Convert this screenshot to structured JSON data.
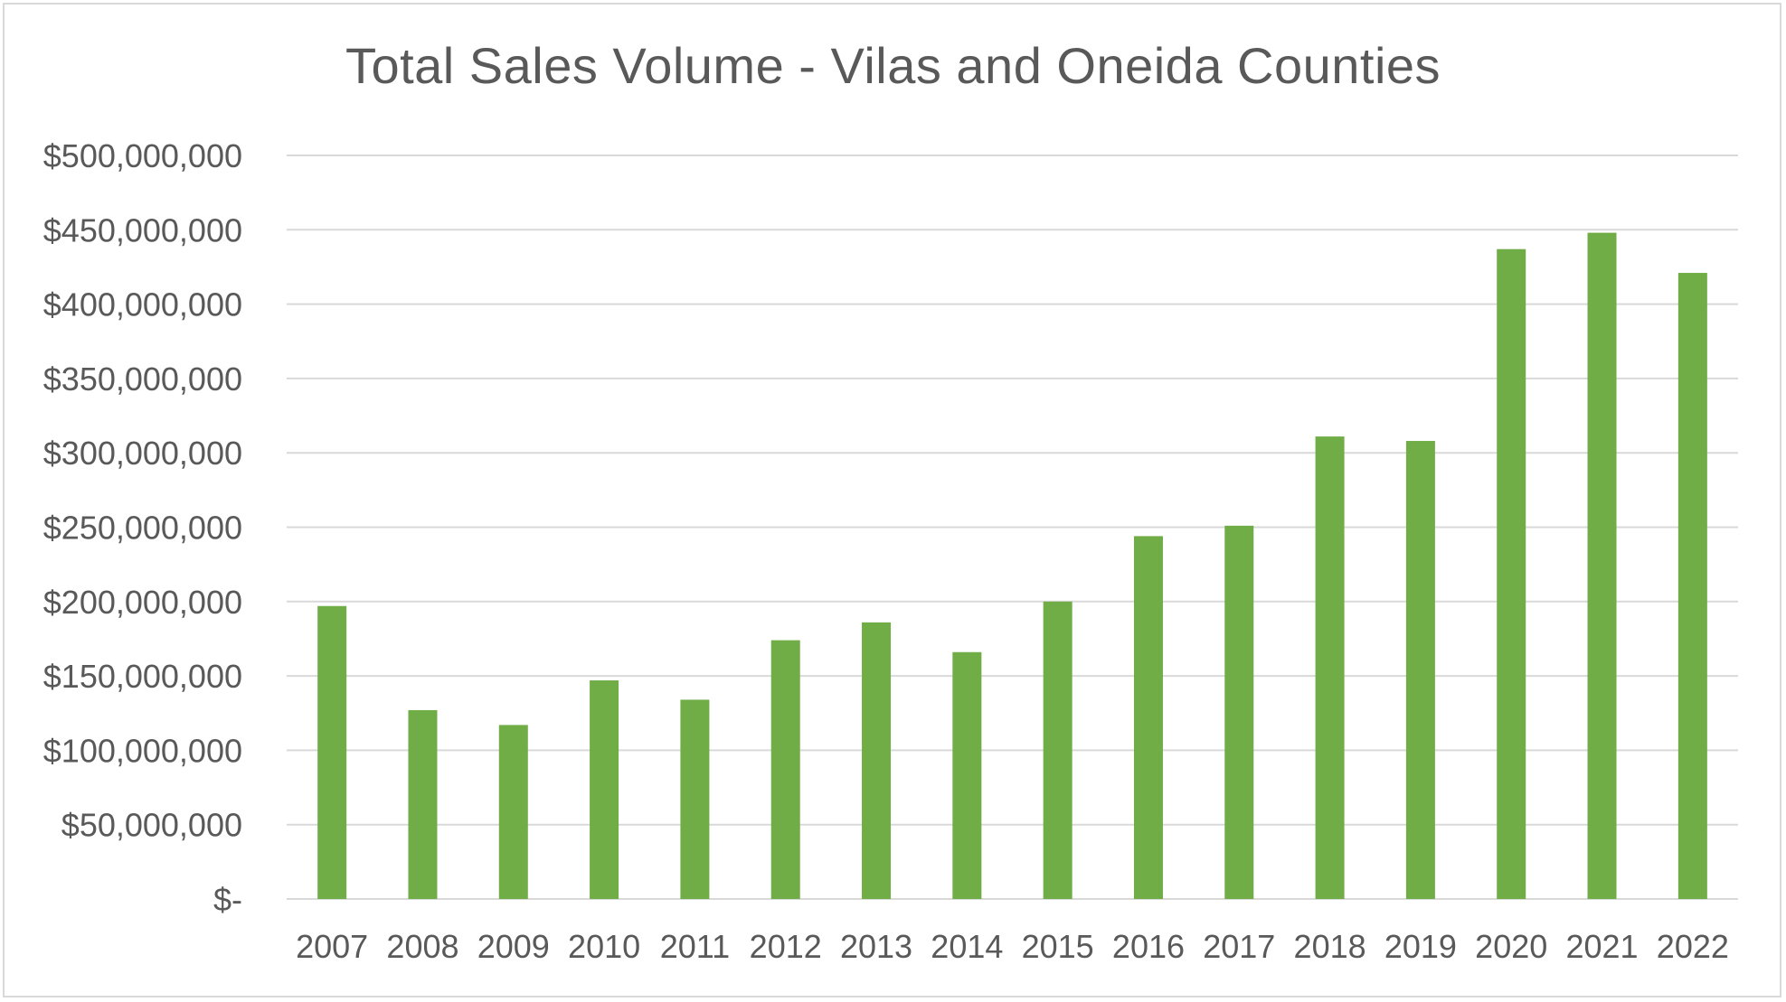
{
  "chart_data": {
    "type": "bar",
    "title": "Total Sales Volume - Vilas and Oneida Counties",
    "xlabel": "",
    "ylabel": "",
    "categories": [
      "2007",
      "2008",
      "2009",
      "2010",
      "2011",
      "2012",
      "2013",
      "2014",
      "2015",
      "2016",
      "2017",
      "2018",
      "2019",
      "2020",
      "2021",
      "2022"
    ],
    "values": [
      197000000,
      127000000,
      117000000,
      147000000,
      134000000,
      174000000,
      186000000,
      166000000,
      200000000,
      244000000,
      251000000,
      311000000,
      308000000,
      437000000,
      448000000,
      421000000
    ],
    "ylim": [
      0,
      500000000
    ],
    "yticks": [
      0,
      50000000,
      100000000,
      150000000,
      200000000,
      250000000,
      300000000,
      350000000,
      400000000,
      450000000,
      500000000
    ],
    "ytick_labels": [
      "$-",
      "$50,000,000",
      "$100,000,000",
      "$150,000,000",
      "$200,000,000",
      "$250,000,000",
      "$300,000,000",
      "$350,000,000",
      "$400,000,000",
      "$450,000,000",
      "$500,000,000"
    ],
    "grid": true,
    "legend": "none",
    "bar_color": "#70ad47",
    "grid_color": "#d9d9d9",
    "text_color": "#595959"
  }
}
